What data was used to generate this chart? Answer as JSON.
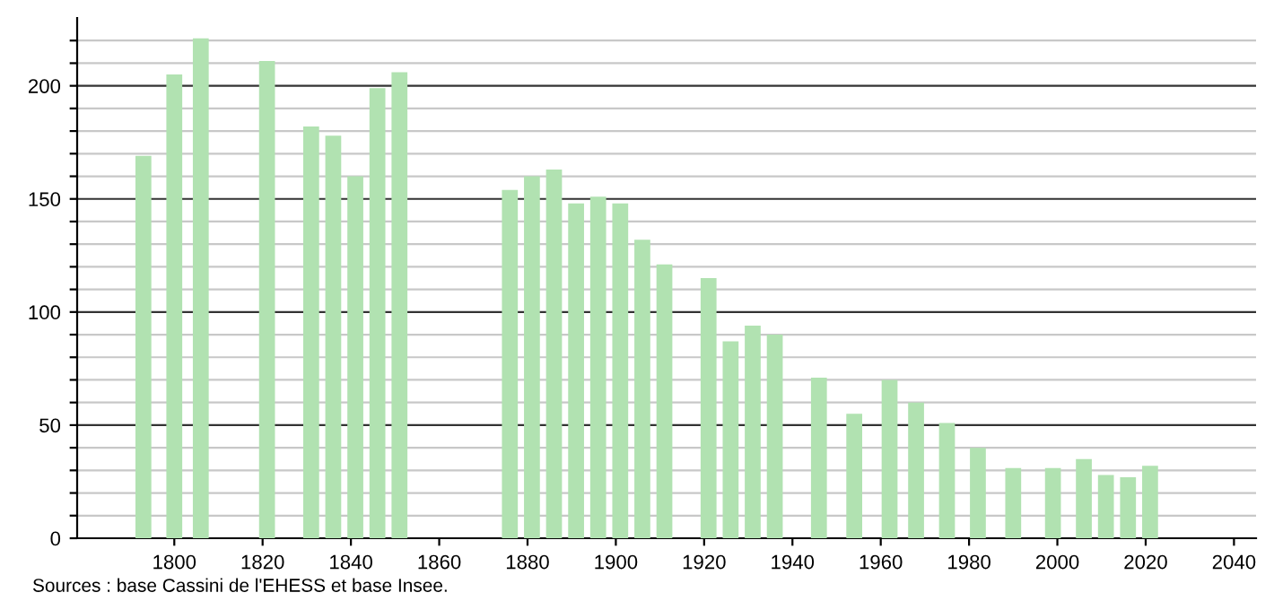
{
  "chart_data": {
    "type": "bar",
    "x": [
      1793,
      1800,
      1806,
      1821,
      1831,
      1836,
      1841,
      1846,
      1851,
      1876,
      1881,
      1886,
      1891,
      1896,
      1901,
      1906,
      1911,
      1921,
      1926,
      1931,
      1936,
      1946,
      1954,
      1962,
      1968,
      1975,
      1982,
      1990,
      1999,
      2006,
      2011,
      2016,
      2021
    ],
    "values": [
      169,
      205,
      221,
      211,
      182,
      178,
      160,
      199,
      206,
      154,
      160,
      163,
      148,
      151,
      148,
      132,
      121,
      115,
      87,
      94,
      90,
      71,
      55,
      70,
      60,
      51,
      40,
      31,
      31,
      35,
      28,
      27,
      32
    ],
    "color": "#b1e2b1",
    "xlim": [
      1778,
      2045
    ],
    "xticks": [
      1800,
      1820,
      1840,
      1860,
      1880,
      1900,
      1920,
      1940,
      1960,
      1980,
      2000,
      2020,
      2040
    ],
    "ylim": [
      0,
      230
    ],
    "yticks": [
      0,
      {
        "value": 10,
        "label": null
      },
      {
        "value": 20,
        "label": null
      },
      {
        "value": 30,
        "label": null
      },
      {
        "value": 40,
        "label": null
      },
      50,
      {
        "value": 60,
        "label": null
      },
      {
        "value": 70,
        "label": null
      },
      {
        "value": 80,
        "label": null
      },
      {
        "value": 90,
        "label": null
      },
      100,
      {
        "value": 110,
        "label": null
      },
      {
        "value": 120,
        "label": null
      },
      {
        "value": 130,
        "label": null
      },
      {
        "value": 140,
        "label": null
      },
      150,
      {
        "value": 160,
        "label": null
      },
      {
        "value": 170,
        "label": null
      },
      {
        "value": 180,
        "label": null
      },
      {
        "value": 190,
        "label": null
      },
      200,
      {
        "value": 210,
        "label": null
      },
      {
        "value": 220,
        "label": null
      }
    ],
    "grid": "y",
    "annotations": [
      "Sources : base Cassini de l'EHESS et base Insee."
    ]
  }
}
